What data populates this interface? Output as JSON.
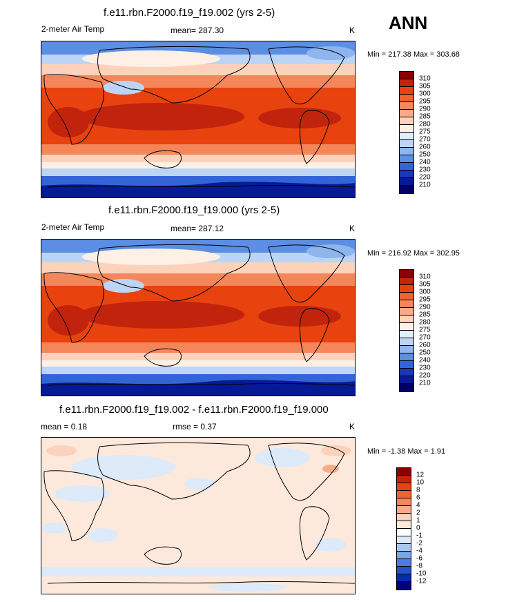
{
  "season": "ANN",
  "panels": [
    {
      "title": "f.e11.rbn.F2000.f19_f19.002 (yrs 2-5)",
      "left_label": "2-meter Air Temp",
      "center_label": "mean= 287.30",
      "units": "K",
      "minmax": "Min = 217.38 Max = 303.68",
      "levels": [
        "310",
        "305",
        "300",
        "295",
        "290",
        "285",
        "280",
        "275",
        "270",
        "260",
        "250",
        "240",
        "230",
        "220",
        "210"
      ],
      "colors": [
        "#8b0000",
        "#c1230c",
        "#e8420f",
        "#f0622e",
        "#f5865a",
        "#f9ab89",
        "#fcd2bb",
        "#fff0e6",
        "#e3eefb",
        "#bcd5f5",
        "#8fb5ee",
        "#5c8ee3",
        "#3264d8",
        "#1838b8",
        "#071a96",
        "#000066"
      ]
    },
    {
      "title": "f.e11.rbn.F2000.f19_f19.000 (yrs 2-5)",
      "left_label": "2-meter Air Temp",
      "center_label": "mean= 287.12",
      "units": "K",
      "minmax": "Min = 216.92 Max = 302.95",
      "levels": [
        "310",
        "305",
        "300",
        "295",
        "290",
        "285",
        "280",
        "275",
        "270",
        "260",
        "250",
        "240",
        "230",
        "220",
        "210"
      ],
      "colors": [
        "#8b0000",
        "#c1230c",
        "#e8420f",
        "#f0622e",
        "#f5865a",
        "#f9ab89",
        "#fcd2bb",
        "#fff0e6",
        "#e3eefb",
        "#bcd5f5",
        "#8fb5ee",
        "#5c8ee3",
        "#3264d8",
        "#1838b8",
        "#071a96",
        "#000066"
      ]
    },
    {
      "title": "f.e11.rbn.F2000.f19_f19.002 - f.e11.rbn.F2000.f19_f19.000",
      "left_label": "mean =   0.18",
      "center_label": "rmse =   0.37",
      "units": "K",
      "minmax": "Min =  -1.38 Max =   1.91",
      "levels": [
        "12",
        "10",
        "8",
        "6",
        "4",
        "2",
        "1",
        "0",
        "-1",
        "-2",
        "-4",
        "-6",
        "-8",
        "-10",
        "-12"
      ],
      "colors": [
        "#8b0000",
        "#c1230c",
        "#e8420f",
        "#f0622e",
        "#f5865a",
        "#f9ab89",
        "#fcd2bb",
        "#fde9dc",
        "#ffffff",
        "#dceafa",
        "#a9c8f1",
        "#7aa5e8",
        "#4a7ddd",
        "#2352c8",
        "#0c2aa6",
        "#000080"
      ]
    }
  ]
}
